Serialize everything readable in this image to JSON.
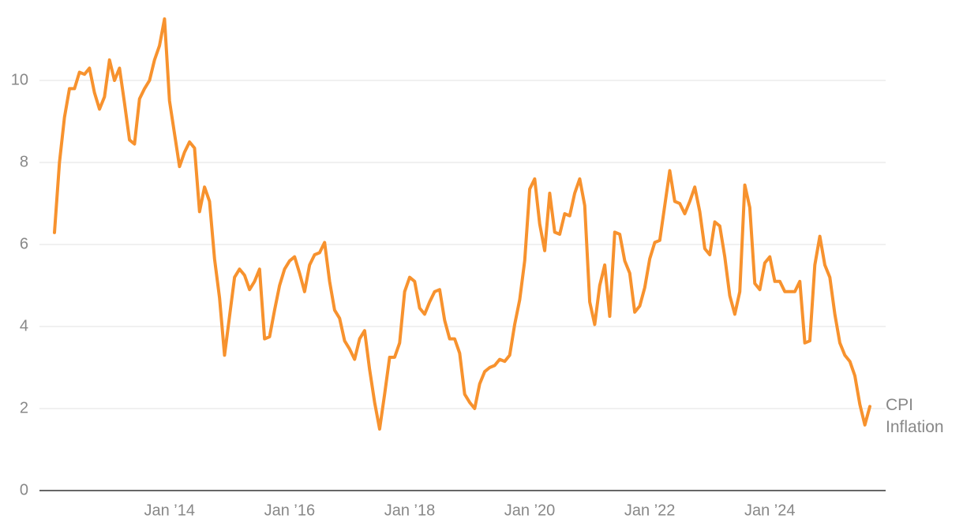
{
  "chart_data": {
    "type": "line",
    "categories": [
      null,
      null,
      null,
      null,
      null,
      null,
      null,
      null,
      null,
      null,
      null,
      null,
      null,
      null,
      null,
      null,
      null,
      null,
      null,
      null,
      null,
      null,
      null,
      "Jan ’14",
      null,
      null,
      null,
      null,
      null,
      null,
      null,
      null,
      null,
      null,
      null,
      null,
      null,
      null,
      null,
      null,
      null,
      null,
      null,
      null,
      null,
      null,
      null,
      "Jan ’16",
      null,
      null,
      null,
      null,
      null,
      null,
      null,
      null,
      null,
      null,
      null,
      null,
      null,
      null,
      null,
      null,
      null,
      null,
      null,
      null,
      null,
      null,
      null,
      "Jan ’18",
      null,
      null,
      null,
      null,
      null,
      null,
      null,
      null,
      null,
      null,
      null,
      null,
      null,
      null,
      null,
      null,
      null,
      null,
      null,
      null,
      null,
      null,
      null,
      "Jan ’20",
      null,
      null,
      null,
      null,
      null,
      null,
      null,
      null,
      null,
      null,
      null,
      null,
      null,
      null,
      null,
      null,
      null,
      null,
      null,
      null,
      null,
      null,
      null,
      "Jan ’22",
      null,
      null,
      null,
      null,
      null,
      null,
      null,
      null,
      null,
      null,
      null,
      null,
      null,
      null,
      null,
      null,
      null,
      null,
      null,
      null,
      null,
      null,
      null,
      "Jan ’24",
      null,
      null,
      null,
      null,
      null,
      null,
      null,
      null,
      null,
      null,
      null,
      null,
      null,
      null,
      null,
      null,
      null,
      null,
      null,
      null
    ],
    "series": [
      {
        "name": "CPI Inflation",
        "color": "#f7922e",
        "values": [
          6.29,
          8.0,
          9.1,
          9.8,
          9.8,
          10.2,
          10.15,
          10.3,
          9.7,
          9.3,
          9.6,
          10.5,
          10.0,
          10.3,
          9.45,
          8.55,
          8.45,
          9.55,
          9.8,
          10.0,
          10.5,
          10.85,
          11.5,
          9.5,
          8.7,
          7.9,
          8.25,
          8.5,
          8.35,
          6.8,
          7.4,
          7.05,
          5.65,
          4.7,
          3.3,
          4.25,
          5.2,
          5.4,
          5.25,
          4.9,
          5.1,
          5.4,
          3.7,
          3.75,
          4.4,
          5.0,
          5.4,
          5.6,
          5.7,
          5.3,
          4.85,
          5.5,
          5.75,
          5.8,
          6.05,
          5.1,
          4.4,
          4.2,
          3.65,
          3.45,
          3.2,
          3.7,
          3.9,
          2.95,
          2.15,
          1.5,
          2.35,
          3.25,
          3.25,
          3.6,
          4.85,
          5.2,
          5.1,
          4.45,
          4.3,
          4.6,
          4.85,
          4.9,
          4.15,
          3.7,
          3.7,
          3.35,
          2.35,
          2.15,
          2.0,
          2.6,
          2.9,
          3.0,
          3.05,
          3.2,
          3.15,
          3.3,
          4.05,
          4.65,
          5.6,
          7.35,
          7.6,
          6.5,
          5.85,
          7.25,
          6.3,
          6.25,
          6.75,
          6.7,
          7.25,
          7.6,
          6.95,
          4.6,
          4.05,
          5.0,
          5.5,
          4.25,
          6.3,
          6.25,
          5.6,
          5.3,
          4.35,
          4.5,
          4.95,
          5.65,
          6.05,
          6.1,
          6.95,
          7.8,
          7.05,
          7.0,
          6.75,
          7.05,
          7.4,
          6.8,
          5.9,
          5.75,
          6.55,
          6.45,
          5.7,
          4.75,
          4.3,
          4.85,
          7.45,
          6.9,
          5.05,
          4.9,
          5.55,
          5.7,
          5.1,
          5.1,
          4.85,
          4.85,
          4.85,
          5.1,
          3.6,
          3.65,
          5.5,
          6.2,
          5.5,
          5.2,
          4.3,
          3.6,
          3.3,
          3.15,
          2.8,
          2.1,
          1.6,
          2.05
        ]
      }
    ],
    "ylim": [
      0,
      12
    ],
    "yticks": [
      0,
      2,
      4,
      6,
      8,
      10
    ],
    "grid": true
  }
}
